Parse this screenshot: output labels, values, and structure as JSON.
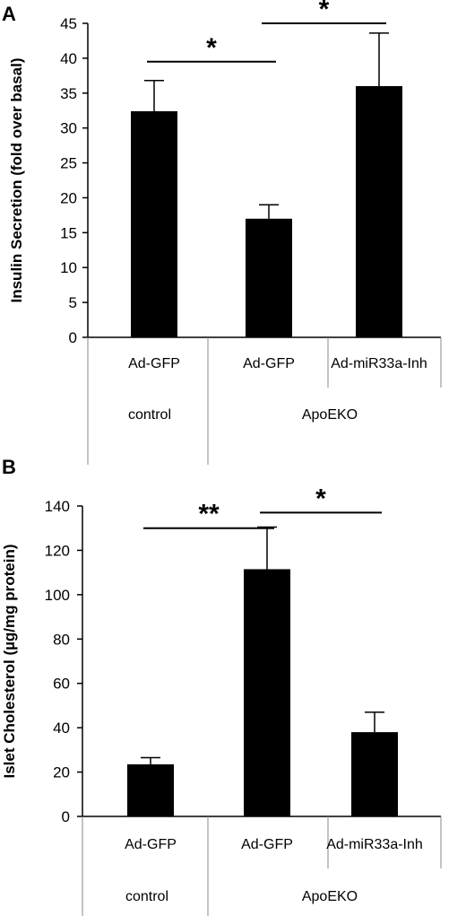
{
  "chart_data": [
    {
      "type": "bar",
      "panel_label": "A",
      "ylabel": "Insulin Secretion (fold over basal)",
      "ylim": [
        0,
        45
      ],
      "yticks": [
        0,
        5,
        10,
        15,
        20,
        25,
        30,
        35,
        40,
        45
      ],
      "categories": [
        "Ad-GFP",
        "Ad-GFP",
        "Ad-miR33a-Inh"
      ],
      "groups": [
        {
          "label": "control",
          "categories": 1
        },
        {
          "label": "ApoEKO",
          "categories": 2
        }
      ],
      "values": [
        32.4,
        17.0,
        36.0
      ],
      "errors": [
        4.4,
        2.0,
        7.6
      ],
      "bar_color": "#000000",
      "significance": [
        {
          "from": 0,
          "to": 1,
          "label": "*",
          "y": 39.5
        },
        {
          "from": 1,
          "to": 2,
          "label": "*",
          "y": 45
        }
      ]
    },
    {
      "type": "bar",
      "panel_label": "B",
      "ylabel": "Islet Cholesterol (µg/mg protein)",
      "ylim": [
        0,
        140
      ],
      "yticks": [
        0,
        20,
        40,
        60,
        80,
        100,
        120,
        140
      ],
      "categories": [
        "Ad-GFP",
        "Ad-GFP",
        "Ad-miR33a-Inh"
      ],
      "groups": [
        {
          "label": "control",
          "categories": 1
        },
        {
          "label": "ApoEKO",
          "categories": 2
        }
      ],
      "values": [
        23.5,
        111.5,
        38.0
      ],
      "errors": [
        3.0,
        19.0,
        9.0
      ],
      "bar_color": "#000000",
      "significance": [
        {
          "from": 0,
          "to": 1,
          "label": "**",
          "y": 130
        },
        {
          "from": 1,
          "to": 2,
          "label": "*",
          "y": 137
        }
      ]
    }
  ]
}
